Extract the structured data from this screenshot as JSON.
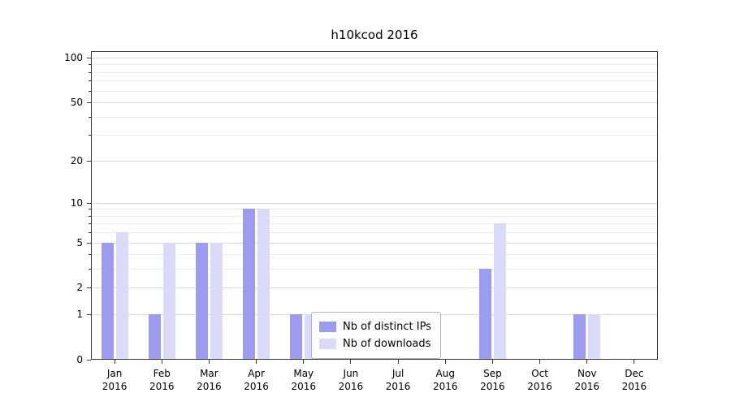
{
  "title": "h10kcod 2016",
  "chart_data": {
    "type": "bar",
    "title": "h10kcod 2016",
    "categories": [
      "Jan",
      "Feb",
      "Mar",
      "Apr",
      "May",
      "Jun",
      "Jul",
      "Aug",
      "Sep",
      "Oct",
      "Nov",
      "Dec"
    ],
    "year": "2016",
    "series": [
      {
        "name": "Nb of distinct IPs",
        "color": "#9b9bf0",
        "values": [
          5,
          1,
          5,
          9,
          1,
          0,
          0,
          0,
          3,
          0,
          1,
          0
        ]
      },
      {
        "name": "Nb of downloads",
        "color": "#dadafb",
        "values": [
          6,
          5,
          5,
          9,
          1,
          0,
          0,
          0,
          7,
          0,
          1,
          0
        ]
      }
    ],
    "xlabel": "",
    "ylabel": "",
    "y_ticks": [
      0,
      1,
      2,
      5,
      10,
      20,
      50,
      100
    ],
    "y_minor_ticks": [
      3,
      4,
      6,
      7,
      8,
      9,
      30,
      40,
      60,
      70,
      80,
      90
    ],
    "y_scale": "log1p",
    "ylim": [
      0,
      100
    ],
    "grid": true,
    "legend_position": "inside-bottom-center"
  }
}
